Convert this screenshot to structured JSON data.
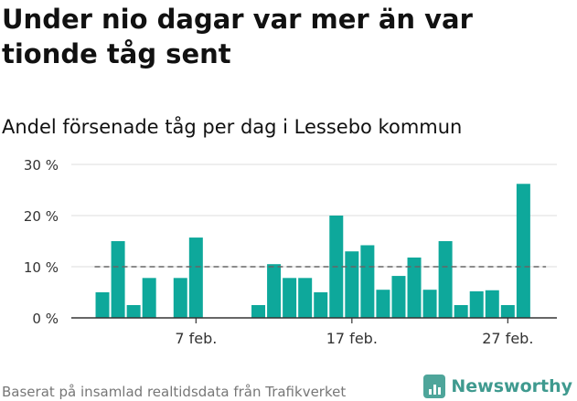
{
  "header": {
    "title": "Under nio dagar var mer än var tionde tåg sent",
    "subtitle": "Andel försenade tåg per dag i Lessebo kommun"
  },
  "footer": {
    "source": "Baserat på insamlad realtidsdata från Trafikverket",
    "brand": "Newsworthy",
    "brand_icon": "bar-chart-logo-icon"
  },
  "chart_data": {
    "type": "bar",
    "title": "Andel försenade tåg per dag i Lessebo kommun",
    "x": [
      1,
      2,
      3,
      4,
      5,
      6,
      7,
      8,
      9,
      10,
      11,
      12,
      13,
      14,
      15,
      16,
      17,
      18,
      19,
      20,
      21,
      22,
      23,
      24,
      25,
      26,
      27,
      28,
      29,
      30
    ],
    "values": [
      5.0,
      15.0,
      2.5,
      7.8,
      null,
      7.8,
      15.7,
      null,
      null,
      null,
      2.5,
      10.5,
      7.8,
      7.8,
      5.0,
      20.0,
      13.0,
      14.2,
      5.5,
      8.2,
      11.8,
      5.5,
      15.0,
      2.5,
      5.2,
      5.4,
      2.5,
      26.2,
      null,
      null
    ],
    "xticks": [
      {
        "x": 7,
        "label": "7 feb."
      },
      {
        "x": 17,
        "label": "17 feb."
      },
      {
        "x": 27,
        "label": "27 feb."
      }
    ],
    "yticks": [
      {
        "value": 0,
        "label": "0 %"
      },
      {
        "value": 10,
        "label": "10 %"
      },
      {
        "value": 20,
        "label": "20 %"
      },
      {
        "value": 30,
        "label": "30 %"
      }
    ],
    "ylim": [
      0,
      30
    ],
    "reference_line": 10,
    "grid": true,
    "colors": {
      "bar": "#0ea89b",
      "reference": "#666666",
      "grid": "#dddddd",
      "axis": "#333333"
    }
  }
}
